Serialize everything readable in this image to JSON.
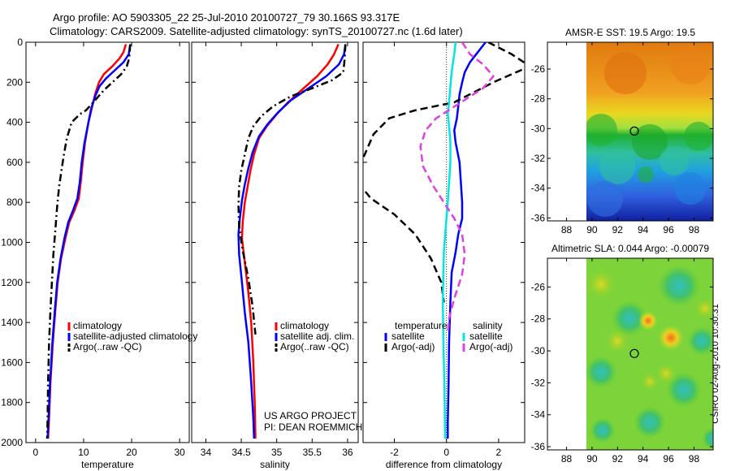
{
  "header": {
    "title_line1": "Argo profile: AO 5903305_22 25-Jul-2010 20100727_79 30.166S 93.317E",
    "title_line2": "Climatology: CARS2009. Satellite-adjusted climatology: synTS_20100727.nc (1.6d later)"
  },
  "footer_note": {
    "line1": "US ARGO PROJECT",
    "line2": "PI: DEAN ROEMMICH"
  },
  "side_stamp": "CSIRO 02-Aug-2010 10:30:31",
  "colors": {
    "climatology": "#ff0000",
    "satellite": "#0000ff",
    "argo": "#000000",
    "satellite_salinity": "#00e5e5",
    "argo_salinity": "#e040e0"
  },
  "chart_data": [
    {
      "type": "line",
      "panel": "temperature",
      "xlabel": "temperature",
      "ylim": [
        2000,
        0
      ],
      "xlim": [
        -2,
        32
      ],
      "xticks": [
        0,
        10,
        20,
        30
      ],
      "yticks": [
        0,
        200,
        400,
        600,
        800,
        1000,
        1200,
        1400,
        1600,
        1800,
        2000
      ],
      "legend": [
        "climatology",
        "satellite-adjusted climatology",
        "Argo(..raw -QC)"
      ],
      "legend_position": "lower-center",
      "series": [
        {
          "name": "climatology",
          "style": "solid",
          "color": "#ff0000",
          "points": [
            [
              18.8,
              10
            ],
            [
              18.3,
              50
            ],
            [
              17.5,
              80
            ],
            [
              16.0,
              120
            ],
            [
              14.2,
              160
            ],
            [
              13.2,
              200
            ],
            [
              12.4,
              260
            ],
            [
              11.7,
              330
            ],
            [
              11.0,
              400
            ],
            [
              10.3,
              500
            ],
            [
              9.8,
              600
            ],
            [
              9.4,
              700
            ],
            [
              9.0,
              780
            ],
            [
              8.1,
              840
            ],
            [
              7.0,
              900
            ],
            [
              6.2,
              980
            ],
            [
              5.3,
              1080
            ],
            [
              4.6,
              1200
            ],
            [
              4.1,
              1340
            ],
            [
              3.6,
              1500
            ],
            [
              3.1,
              1700
            ],
            [
              2.8,
              1880
            ],
            [
              2.6,
              1980
            ]
          ]
        },
        {
          "name": "satellite-adjusted climatology",
          "style": "solid",
          "color": "#0000ff",
          "points": [
            [
              19.7,
              10
            ],
            [
              19.4,
              60
            ],
            [
              18.3,
              100
            ],
            [
              16.5,
              140
            ],
            [
              14.7,
              180
            ],
            [
              13.3,
              220
            ],
            [
              12.4,
              270
            ],
            [
              11.6,
              330
            ],
            [
              11.0,
              400
            ],
            [
              10.2,
              500
            ],
            [
              9.6,
              600
            ],
            [
              9.2,
              700
            ],
            [
              8.7,
              780
            ],
            [
              7.8,
              840
            ],
            [
              6.8,
              900
            ],
            [
              6.0,
              980
            ],
            [
              5.2,
              1080
            ],
            [
              4.5,
              1200
            ],
            [
              4.0,
              1340
            ],
            [
              3.5,
              1500
            ],
            [
              3.0,
              1700
            ],
            [
              2.7,
              1880
            ],
            [
              2.5,
              1980
            ]
          ]
        },
        {
          "name": "Argo(..raw -QC)",
          "style": "dashdot",
          "color": "#000000",
          "points": [
            [
              19.7,
              10
            ],
            [
              19.5,
              80
            ],
            [
              19.0,
              120
            ],
            [
              17.8,
              160
            ],
            [
              16.0,
              200
            ],
            [
              14.2,
              240
            ],
            [
              12.0,
              300
            ],
            [
              10.5,
              340
            ],
            [
              9.2,
              360
            ],
            [
              7.5,
              400
            ],
            [
              6.5,
              480
            ],
            [
              5.9,
              560
            ],
            [
              5.4,
              640
            ],
            [
              4.9,
              720
            ],
            [
              4.5,
              820
            ],
            [
              4.1,
              940
            ],
            [
              3.7,
              1060
            ],
            [
              3.4,
              1200
            ],
            [
              3.1,
              1340
            ],
            [
              2.8,
              1500
            ],
            [
              2.6,
              1700
            ],
            [
              2.5,
              1880
            ],
            [
              2.4,
              1980
            ]
          ]
        }
      ]
    },
    {
      "type": "line",
      "panel": "salinity",
      "xlabel": "salinity",
      "ylim": [
        2000,
        0
      ],
      "xlim": [
        33.8,
        36.15
      ],
      "xticks": [
        34,
        34.5,
        35,
        35.5,
        36
      ],
      "legend": [
        "climatology",
        "satellite adj. clim.",
        "Argo(..raw -QC)"
      ],
      "legend_position": "lower-right",
      "series": [
        {
          "name": "climatology",
          "style": "solid",
          "color": "#ff0000",
          "points": [
            [
              35.87,
              10
            ],
            [
              35.81,
              60
            ],
            [
              35.72,
              110
            ],
            [
              35.57,
              170
            ],
            [
              35.38,
              230
            ],
            [
              35.16,
              300
            ],
            [
              35.0,
              360
            ],
            [
              34.86,
              420
            ],
            [
              34.75,
              480
            ],
            [
              34.68,
              560
            ],
            [
              34.63,
              640
            ],
            [
              34.59,
              720
            ],
            [
              34.55,
              800
            ],
            [
              34.52,
              900
            ],
            [
              34.51,
              980
            ],
            [
              34.55,
              1100
            ],
            [
              34.6,
              1250
            ],
            [
              34.64,
              1400
            ],
            [
              34.67,
              1600
            ],
            [
              34.69,
              1800
            ],
            [
              34.7,
              1980
            ]
          ]
        },
        {
          "name": "satellite adj. clim.",
          "style": "solid",
          "color": "#0000ff",
          "points": [
            [
              35.97,
              10
            ],
            [
              35.95,
              60
            ],
            [
              35.88,
              110
            ],
            [
              35.7,
              170
            ],
            [
              35.45,
              230
            ],
            [
              35.2,
              290
            ],
            [
              35.02,
              350
            ],
            [
              34.87,
              410
            ],
            [
              34.75,
              470
            ],
            [
              34.66,
              550
            ],
            [
              34.6,
              630
            ],
            [
              34.55,
              710
            ],
            [
              34.51,
              790
            ],
            [
              34.48,
              880
            ],
            [
              34.46,
              960
            ],
            [
              34.47,
              1060
            ],
            [
              34.51,
              1200
            ],
            [
              34.55,
              1350
            ],
            [
              34.6,
              1500
            ],
            [
              34.64,
              1700
            ],
            [
              34.67,
              1880
            ],
            [
              34.68,
              1980
            ]
          ]
        },
        {
          "name": "Argo(..raw -QC)",
          "style": "dashdot",
          "color": "#000000",
          "points": [
            [
              35.97,
              10
            ],
            [
              35.96,
              80
            ],
            [
              35.94,
              150
            ],
            [
              35.78,
              190
            ],
            [
              35.5,
              230
            ],
            [
              35.2,
              270
            ],
            [
              34.95,
              320
            ],
            [
              34.78,
              370
            ],
            [
              34.67,
              420
            ],
            [
              34.6,
              480
            ],
            [
              34.55,
              560
            ],
            [
              34.5,
              640
            ],
            [
              34.47,
              720
            ],
            [
              34.46,
              820
            ],
            [
              34.47,
              920
            ],
            [
              34.52,
              1040
            ],
            [
              34.6,
              1180
            ],
            [
              34.66,
              1320
            ],
            [
              34.7,
              1460
            ]
          ]
        }
      ]
    },
    {
      "type": "line",
      "panel": "difference",
      "xlabel": "difference from climatology",
      "ylim": [
        2000,
        0
      ],
      "xlim": [
        -3.2,
        3.0
      ],
      "xticks": [
        -2,
        0,
        2
      ],
      "legend_groups": [
        {
          "title": "temperature",
          "items": [
            "satellite",
            "Argo(-adj)"
          ]
        },
        {
          "title": "salinity",
          "items": [
            "satellite",
            "Argo(-adj)"
          ]
        }
      ],
      "legend_position": "lower-center",
      "series": [
        {
          "name": "satellite",
          "group": "temperature",
          "style": "solid",
          "color": "#0000ff",
          "points": [
            [
              1.5,
              0
            ],
            [
              1.2,
              50
            ],
            [
              0.9,
              100
            ],
            [
              0.7,
              150
            ],
            [
              0.6,
              200
            ],
            [
              0.5,
              260
            ],
            [
              0.45,
              320
            ],
            [
              0.4,
              380
            ],
            [
              0.3,
              440
            ],
            [
              0.35,
              500
            ],
            [
              0.5,
              600
            ],
            [
              0.55,
              700
            ],
            [
              0.6,
              800
            ],
            [
              0.6,
              880
            ],
            [
              0.45,
              960
            ],
            [
              0.35,
              1050
            ],
            [
              0.2,
              1150
            ],
            [
              0.15,
              1300
            ],
            [
              0.1,
              1500
            ],
            [
              0.08,
              1700
            ],
            [
              0.05,
              1900
            ],
            [
              0.05,
              1980
            ]
          ]
        },
        {
          "name": "Argo(-adj)",
          "group": "temperature",
          "style": "dashed",
          "color": "#000000",
          "points": [
            [
              1.6,
              0
            ],
            [
              2.5,
              60
            ],
            [
              3.2,
              120
            ],
            [
              1.8,
              200
            ],
            [
              0.3,
              300
            ],
            [
              -1.2,
              340
            ],
            [
              -2.2,
              380
            ],
            [
              -2.8,
              460
            ],
            [
              -3.2,
              580
            ],
            [
              -3.4,
              700
            ],
            [
              -2.9,
              780
            ],
            [
              -2.0,
              860
            ],
            [
              -1.2,
              960
            ],
            [
              -0.6,
              1080
            ],
            [
              -0.2,
              1200
            ],
            [
              -0.1,
              1300
            ]
          ]
        },
        {
          "name": "satellite",
          "group": "salinity",
          "style": "solid",
          "color": "#00e5e5",
          "points": [
            [
              0.35,
              0
            ],
            [
              0.3,
              60
            ],
            [
              0.25,
              100
            ],
            [
              0.2,
              150
            ],
            [
              0.15,
              220
            ],
            [
              0.1,
              300
            ],
            [
              0.05,
              360
            ],
            [
              0.1,
              420
            ],
            [
              0.15,
              500
            ],
            [
              0.15,
              600
            ],
            [
              0.1,
              700
            ],
            [
              0.05,
              800
            ],
            [
              0.0,
              880
            ],
            [
              -0.05,
              960
            ],
            [
              -0.1,
              1050
            ],
            [
              -0.12,
              1150
            ],
            [
              -0.14,
              1300
            ],
            [
              -0.12,
              1500
            ],
            [
              -0.08,
              1700
            ],
            [
              -0.06,
              1900
            ],
            [
              -0.05,
              1980
            ]
          ]
        },
        {
          "name": "Argo(-adj)",
          "group": "salinity",
          "style": "dashed",
          "color": "#e040e0",
          "points": [
            [
              0.6,
              0
            ],
            [
              0.9,
              60
            ],
            [
              1.4,
              110
            ],
            [
              1.8,
              170
            ],
            [
              1.4,
              230
            ],
            [
              0.8,
              280
            ],
            [
              0.2,
              330
            ],
            [
              -0.4,
              380
            ],
            [
              -0.8,
              440
            ],
            [
              -1.0,
              520
            ],
            [
              -0.9,
              620
            ],
            [
              -0.5,
              720
            ],
            [
              -0.1,
              800
            ],
            [
              0.3,
              880
            ],
            [
              0.6,
              960
            ],
            [
              0.7,
              1060
            ],
            [
              0.6,
              1160
            ],
            [
              0.3,
              1280
            ],
            [
              0.1,
              1380
            ],
            [
              0.05,
              1460
            ]
          ]
        }
      ]
    },
    {
      "type": "heatmap",
      "panel": "sst_map",
      "title": "AMSR-E SST: 19.5 Argo: 19.5",
      "xlim": [
        86.5,
        99.5
      ],
      "ylim": [
        -36.2,
        -24.2
      ],
      "xticks": [
        88,
        90,
        92,
        94,
        96,
        98
      ],
      "yticks": [
        -26,
        -28,
        -30,
        -32,
        -34,
        -36
      ],
      "float_position": [
        93.317,
        -30.166
      ]
    },
    {
      "type": "heatmap",
      "panel": "sla_map",
      "title": "Altimetric SLA: 0.044 Argo: -0.00079",
      "xlim": [
        86.5,
        99.5
      ],
      "ylim": [
        -36.2,
        -24.2
      ],
      "xticks": [
        88,
        90,
        92,
        94,
        96,
        98
      ],
      "yticks": [
        -26,
        -28,
        -30,
        -32,
        -34,
        -36
      ],
      "float_position": [
        93.317,
        -30.166
      ]
    }
  ]
}
